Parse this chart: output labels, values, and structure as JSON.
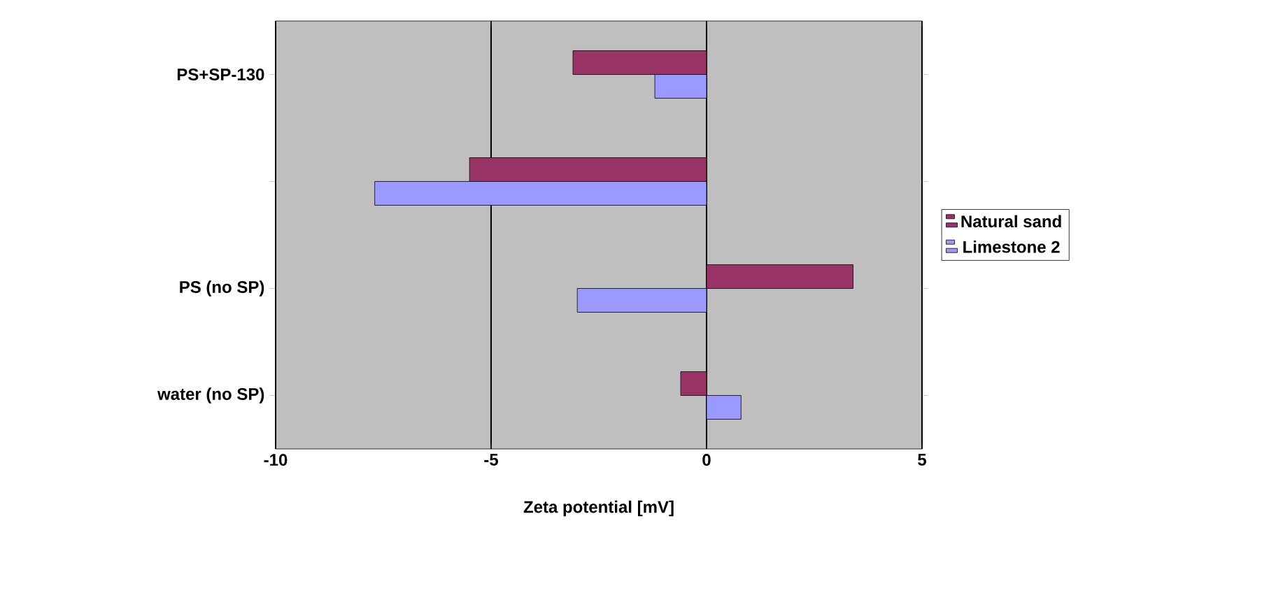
{
  "chart_data": {
    "type": "bar",
    "orientation": "horizontal",
    "xlabel": "Zeta potential [mV]",
    "categories": [
      "PS+SP-130",
      null,
      "PS (no SP)",
      "water (no SP)"
    ],
    "series": [
      {
        "name": "Natural sand",
        "color": "#993366",
        "values": [
          -3.1,
          -5.5,
          3.4,
          -0.6
        ]
      },
      {
        "name": "Limestone 2",
        "color": "#9999ff",
        "values": [
          -1.2,
          -7.7,
          -3.0,
          0.8
        ]
      }
    ],
    "xlim": [
      -10,
      5
    ],
    "xticks": [
      -10,
      -5,
      0,
      5
    ],
    "grid": "x",
    "legend": "right"
  }
}
